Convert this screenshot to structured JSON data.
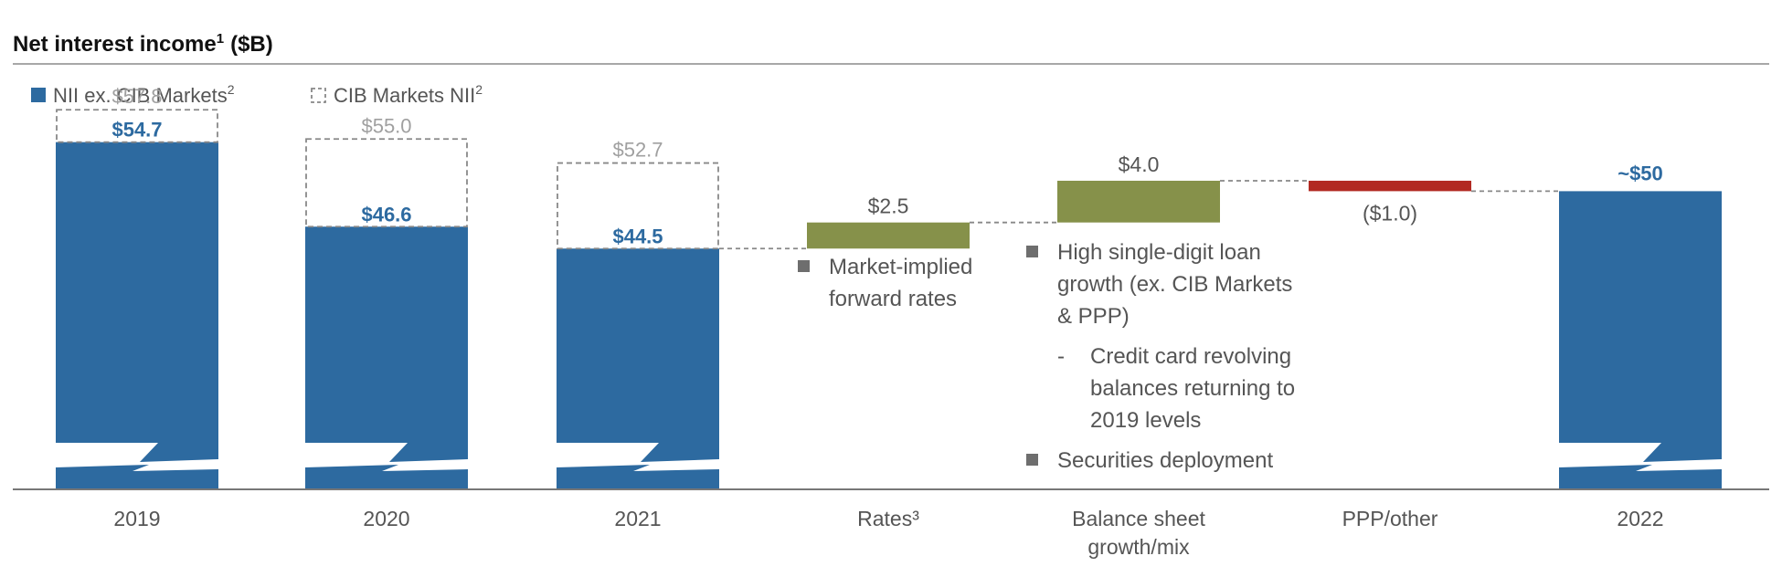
{
  "chart_data": {
    "type": "bar",
    "subtype": "waterfall",
    "title": "Net interest income",
    "title_superscript": "1",
    "title_unit": "($B)",
    "legend": {
      "placement": "top-left",
      "items": [
        {
          "label": "NII ex. CIB Markets",
          "superscript": "2",
          "style": "solid",
          "color": "#2D6AA0"
        },
        {
          "label": "CIB Markets NII",
          "superscript": "2",
          "style": "dashed-outline",
          "color": "#888888"
        }
      ]
    },
    "categories": [
      "2019",
      "2020",
      "2021",
      "Rates³",
      "Balance sheet growth/mix",
      "PPP/other",
      "2022"
    ],
    "category_labels": [
      [
        "2019"
      ],
      [
        "2020"
      ],
      [
        "2021"
      ],
      [
        "Rates³"
      ],
      [
        "Balance sheet",
        "growth/mix"
      ],
      [
        "PPP/other"
      ],
      [
        "2022"
      ]
    ],
    "totals": [
      {
        "category": "2019",
        "nii_ex_cib": 54.7,
        "total": 57.8,
        "label": "$54.7",
        "total_label": "$57.8"
      },
      {
        "category": "2020",
        "nii_ex_cib": 46.6,
        "total": 55.0,
        "label": "$46.6",
        "total_label": "$55.0"
      },
      {
        "category": "2021",
        "nii_ex_cib": 44.5,
        "total": 52.7,
        "label": "$44.5",
        "total_label": "$52.7"
      },
      {
        "category": "2022",
        "nii_ex_cib": 50.0,
        "total": null,
        "label": "~$50",
        "total_label": ""
      }
    ],
    "changes": [
      {
        "category": "Rates³",
        "value": 2.5,
        "label": "$2.5",
        "color": "#86914A"
      },
      {
        "category": "Balance sheet growth/mix",
        "value": 4.0,
        "label": "$4.0",
        "color": "#86914A"
      },
      {
        "category": "PPP/other",
        "value": -1.0,
        "label": "($1.0)",
        "color": "#B22A22"
      }
    ],
    "colors": {
      "bar": "#2D6AA0",
      "increase": "#86914A",
      "decrease": "#B22A22",
      "dashed": "#888888",
      "total_label": "#A0A0A0",
      "label_blue": "#2D6AA0",
      "text": "#555555",
      "bullet": "#6E6E6E"
    },
    "axis_break": true,
    "grid": false
  },
  "annotations": {
    "rates": [
      {
        "bullet": "square",
        "lines": [
          "Market-implied",
          "forward rates"
        ]
      }
    ],
    "balance_sheet": [
      {
        "bullet": "square",
        "lines": [
          "High single-digit loan",
          "growth (ex. CIB Markets",
          "& PPP)"
        ]
      },
      {
        "bullet": "-",
        "lines": [
          "Credit card revolving",
          "balances returning to",
          "2019 levels"
        ]
      },
      {
        "bullet": "square",
        "lines": [
          "Securities deployment"
        ]
      }
    ]
  }
}
